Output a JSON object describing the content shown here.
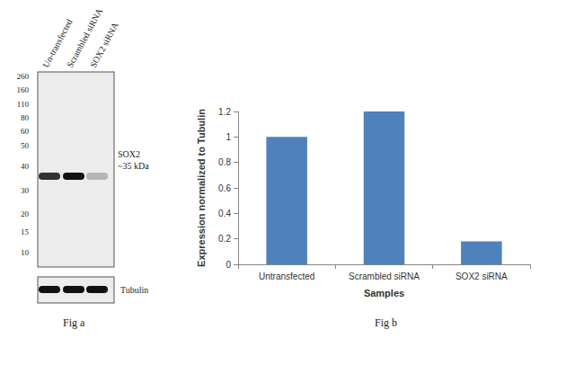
{
  "chart_data": {
    "type": "bar",
    "caption": "Fig b",
    "categories": [
      "Untransfected",
      "Scrambled siRNA",
      "SOX2 siRNA"
    ],
    "values": [
      1,
      1.2,
      0.18
    ],
    "color": "#4f81bd",
    "x_label": "Samples",
    "y_label": "Expression normalized to Tubulin",
    "ylim": [
      0,
      1.2
    ],
    "yticks": [
      0,
      0.2,
      0.4,
      0.6,
      0.8,
      1,
      1.2
    ],
    "grid": false
  },
  "blot": {
    "caption": "Fig a",
    "lanes": [
      "Un-transfected",
      "Scrambled siRNA",
      "SOX2 siRNA"
    ],
    "markers": [
      260,
      160,
      110,
      80,
      60,
      50,
      40,
      30,
      20,
      15,
      10
    ],
    "target_label": "SOX2",
    "target_size": "~35 kDa",
    "loading_control": "Tubulin"
  }
}
